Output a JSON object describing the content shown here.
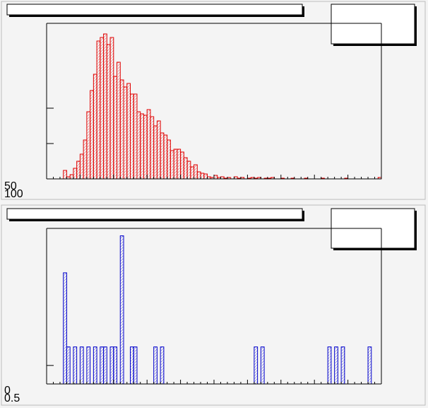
{
  "chart_data": [
    {
      "type": "histogram",
      "color": "#e00000",
      "bins": [
        0,
        1,
        2,
        3,
        4,
        5,
        6,
        7,
        8,
        9,
        10,
        11,
        12,
        13,
        14,
        15,
        16,
        17,
        18,
        19,
        20,
        21,
        22,
        23,
        24,
        25,
        26,
        27,
        28,
        29,
        30,
        31,
        32,
        33,
        34,
        35,
        36,
        37,
        38,
        39,
        40,
        41,
        42,
        43,
        44,
        45,
        46,
        47,
        48,
        49,
        50,
        51,
        52,
        53,
        54,
        55,
        56,
        57,
        58,
        59,
        60,
        61,
        62,
        63,
        64,
        65,
        66,
        67,
        68,
        69,
        70,
        71,
        72,
        73,
        74,
        75,
        76,
        77,
        78,
        79,
        80,
        81,
        82,
        83,
        84,
        85,
        86,
        87,
        88,
        89,
        90,
        91,
        92,
        93,
        94,
        95,
        96,
        97,
        98,
        99,
        100
      ],
      "values": [
        0,
        0,
        0,
        0,
        0,
        12,
        3,
        6,
        15,
        25,
        35,
        55,
        95,
        125,
        148,
        195,
        200,
        205,
        190,
        200,
        145,
        165,
        140,
        130,
        135,
        120,
        120,
        95,
        92,
        90,
        98,
        88,
        75,
        82,
        65,
        62,
        55,
        40,
        42,
        42,
        38,
        30,
        25,
        17,
        20,
        10,
        8,
        7,
        3,
        2,
        5,
        2,
        3,
        1,
        2,
        0,
        3,
        1,
        2,
        0,
        1,
        2,
        1,
        2,
        0,
        1,
        1,
        2,
        0,
        0,
        1,
        0,
        0,
        1,
        0,
        0,
        0,
        1,
        0,
        0,
        0,
        0,
        1,
        0,
        0,
        0,
        0,
        0,
        0,
        1,
        0,
        0,
        0,
        0,
        0,
        0,
        0,
        0,
        0,
        2
      ],
      "xlim": [
        0,
        100
      ],
      "ylim": [
        0,
        220
      ],
      "yticks": [
        50,
        100
      ]
    },
    {
      "type": "histogram",
      "color": "#0000cc",
      "bins": [
        0,
        1,
        2,
        3,
        4,
        5,
        6,
        7,
        8,
        9,
        10,
        11,
        12,
        13,
        14,
        15,
        16,
        17,
        18,
        19,
        20,
        21,
        22,
        23,
        24,
        25,
        26,
        27,
        28,
        29,
        30,
        31,
        32,
        33,
        34,
        35,
        36,
        37,
        38,
        39,
        40,
        41,
        42,
        43,
        44,
        45,
        46,
        47,
        48,
        49,
        50,
        51,
        52,
        53,
        54,
        55,
        56,
        57,
        58,
        59,
        60,
        61,
        62,
        63,
        64,
        65,
        66,
        67,
        68,
        69,
        70,
        71,
        72,
        73,
        74,
        75,
        76,
        77,
        78,
        79,
        80,
        81,
        82,
        83,
        84,
        85,
        86,
        87,
        88,
        89,
        90,
        91,
        92,
        93,
        94,
        95,
        96,
        97,
        98,
        99,
        100
      ],
      "values": [
        0,
        0,
        0,
        0,
        0,
        3,
        1,
        0,
        1,
        0,
        1,
        0,
        1,
        0,
        1,
        0,
        1,
        1,
        0,
        1,
        1,
        0,
        4,
        0,
        0,
        1,
        1,
        0,
        0,
        0,
        0,
        0,
        1,
        0,
        1,
        0,
        0,
        0,
        0,
        0,
        0,
        0,
        0,
        0,
        0,
        0,
        0,
        0,
        0,
        0,
        0,
        0,
        0,
        0,
        0,
        0,
        0,
        0,
        0,
        0,
        0,
        0,
        1,
        0,
        1,
        0,
        0,
        0,
        0,
        0,
        0,
        0,
        0,
        0,
        0,
        0,
        0,
        0,
        0,
        0,
        0,
        0,
        0,
        0,
        1,
        0,
        1,
        0,
        1,
        0,
        0,
        0,
        0,
        0,
        0,
        0,
        1,
        0,
        0,
        0
      ],
      "xlim": [
        0,
        100
      ],
      "ylim": [
        0,
        4.2
      ],
      "yticks": [
        0,
        0.5
      ]
    }
  ]
}
